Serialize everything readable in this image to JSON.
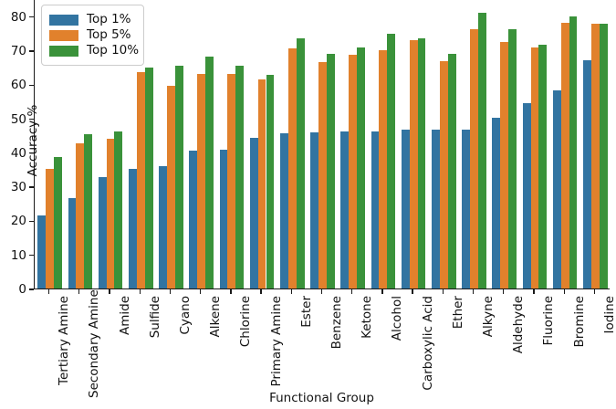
{
  "chart_data": {
    "type": "bar",
    "title": "",
    "xlabel": "Functional Group",
    "ylabel": "Accuracy %",
    "ylim": [
      0,
      85
    ],
    "yticks": [
      0,
      10,
      20,
      30,
      40,
      50,
      60,
      70,
      80
    ],
    "grid": false,
    "legend_position": "upper left",
    "bar_group_fraction": 0.8,
    "categories": [
      "Tertiary Amine",
      "Secondary Amine",
      "Amide",
      "Sulfide",
      "Cyano",
      "Alkene",
      "Chlorine",
      "Primary Amine",
      "Ester",
      "Benzene",
      "Ketone",
      "Alcohol",
      "Carboxylic Acid",
      "Ether",
      "Alkyne",
      "Aldehyde",
      "Fluorine",
      "Bromine",
      "Iodine"
    ],
    "series": [
      {
        "name": "Top 1%",
        "color": "#3274a1",
        "values": [
          21.8,
          26.8,
          33.0,
          35.6,
          36.3,
          41.0,
          41.2,
          44.5,
          46.0,
          46.2,
          46.5,
          46.6,
          47.0,
          47.0,
          47.1,
          50.5,
          54.7,
          58.5,
          67.5
        ]
      },
      {
        "name": "Top 5%",
        "color": "#e1812c",
        "values": [
          35.5,
          43.1,
          44.4,
          64.0,
          59.9,
          63.5,
          63.4,
          61.8,
          70.9,
          67.0,
          69.1,
          70.3,
          73.2,
          67.2,
          76.5,
          72.7,
          71.2,
          78.3,
          78.1
        ]
      },
      {
        "name": "Top 10%",
        "color": "#3a923a",
        "values": [
          39.0,
          45.6,
          46.6,
          65.4,
          65.7,
          68.5,
          65.9,
          63.2,
          73.8,
          69.2,
          71.1,
          75.2,
          73.9,
          69.4,
          81.3,
          76.5,
          71.9,
          80.3,
          78.2
        ]
      }
    ]
  },
  "colors": {
    "background": "#ffffff",
    "axis": "#1a1a1a",
    "text": "#111111",
    "legend_border": "#cccccc"
  }
}
